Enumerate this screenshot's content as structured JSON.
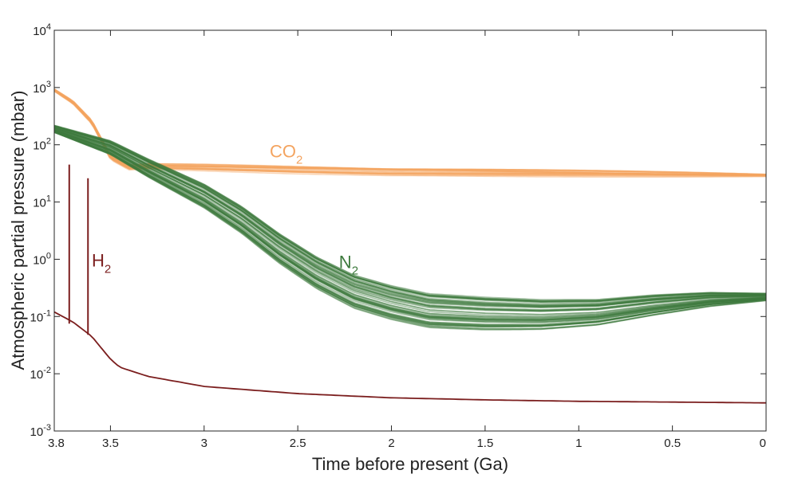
{
  "chart_data": {
    "type": "line",
    "title": "",
    "xlabel": "Time before present (Ga)",
    "ylabel": "Atmospheric partial pressure (mbar)",
    "xlim": [
      3.8,
      0
    ],
    "ylim": [
      0.001,
      10000
    ],
    "yscale": "log",
    "x_reversed": true,
    "grid": false,
    "x_ticks": [
      {
        "value": 3.8,
        "label": "3.8"
      },
      {
        "value": 3.5,
        "label": "3.5"
      },
      {
        "value": 3,
        "label": "3"
      },
      {
        "value": 2.5,
        "label": "2.5"
      },
      {
        "value": 2,
        "label": "2"
      },
      {
        "value": 1.5,
        "label": "1.5"
      },
      {
        "value": 1,
        "label": "1"
      },
      {
        "value": 0.5,
        "label": "0.5"
      },
      {
        "value": 0,
        "label": "0"
      }
    ],
    "y_ticks": [
      {
        "value": 0.001,
        "base": "10",
        "exp": "-3"
      },
      {
        "value": 0.01,
        "base": "10",
        "exp": "-2"
      },
      {
        "value": 0.1,
        "base": "10",
        "exp": "-1"
      },
      {
        "value": 1,
        "base": "10",
        "exp": "0"
      },
      {
        "value": 10,
        "base": "10",
        "exp": "1"
      },
      {
        "value": 100,
        "base": "10",
        "exp": "2"
      },
      {
        "value": 1000,
        "base": "10",
        "exp": "3"
      },
      {
        "value": 10000,
        "base": "10",
        "exp": "4"
      }
    ],
    "series": [
      {
        "label_main": "CO",
        "label_sub": "2",
        "color": "#f4a460",
        "label_at": {
          "x": 2.65,
          "y": 60
        },
        "ensemble_count": 24,
        "ensemble_spread": 0.06,
        "points": [
          {
            "x": 3.8,
            "y": 900
          },
          {
            "x": 3.7,
            "y": 550
          },
          {
            "x": 3.6,
            "y": 250
          },
          {
            "x": 3.5,
            "y": 60
          },
          {
            "x": 3.4,
            "y": 40
          },
          {
            "x": 3.3,
            "y": 42
          },
          {
            "x": 3.0,
            "y": 40
          },
          {
            "x": 2.5,
            "y": 36
          },
          {
            "x": 2.0,
            "y": 33
          },
          {
            "x": 1.5,
            "y": 32
          },
          {
            "x": 1.0,
            "y": 31
          },
          {
            "x": 0.5,
            "y": 30
          },
          {
            "x": 0,
            "y": 29
          }
        ]
      },
      {
        "label_main": "N",
        "label_sub": "2",
        "color": "#3d7a3d",
        "label_at": {
          "x": 2.28,
          "y": 0.7
        },
        "ensemble_count": 60,
        "ensemble_spread": 0.32,
        "points": [
          {
            "x": 3.8,
            "y": 190
          },
          {
            "x": 3.5,
            "y": 90
          },
          {
            "x": 3.3,
            "y": 40
          },
          {
            "x": 3.0,
            "y": 13
          },
          {
            "x": 2.8,
            "y": 5
          },
          {
            "x": 2.6,
            "y": 1.6
          },
          {
            "x": 2.4,
            "y": 0.6
          },
          {
            "x": 2.2,
            "y": 0.28
          },
          {
            "x": 2.0,
            "y": 0.18
          },
          {
            "x": 1.8,
            "y": 0.13
          },
          {
            "x": 1.5,
            "y": 0.115
          },
          {
            "x": 1.2,
            "y": 0.11
          },
          {
            "x": 0.9,
            "y": 0.12
          },
          {
            "x": 0.6,
            "y": 0.16
          },
          {
            "x": 0.3,
            "y": 0.2
          },
          {
            "x": 0,
            "y": 0.22
          }
        ]
      },
      {
        "label_main": "H",
        "label_sub": "2",
        "color": "#7b1e1e",
        "label_at": {
          "x": 3.6,
          "y": 0.75
        },
        "ensemble_count": 1,
        "ensemble_spread": 0,
        "points": [
          {
            "x": 3.8,
            "y": 0.12
          },
          {
            "x": 3.7,
            "y": 0.08
          },
          {
            "x": 3.6,
            "y": 0.045
          },
          {
            "x": 3.5,
            "y": 0.018
          },
          {
            "x": 3.45,
            "y": 0.013
          },
          {
            "x": 3.3,
            "y": 0.009
          },
          {
            "x": 3.0,
            "y": 0.006
          },
          {
            "x": 2.5,
            "y": 0.0045
          },
          {
            "x": 2.0,
            "y": 0.0038
          },
          {
            "x": 1.5,
            "y": 0.0035
          },
          {
            "x": 1.0,
            "y": 0.0033
          },
          {
            "x": 0.5,
            "y": 0.0032
          },
          {
            "x": 0,
            "y": 0.0031
          }
        ],
        "spikes": [
          {
            "x": 3.72,
            "base": 0.075,
            "top": 45
          },
          {
            "x": 3.62,
            "base": 0.048,
            "top": 26
          }
        ]
      }
    ]
  }
}
